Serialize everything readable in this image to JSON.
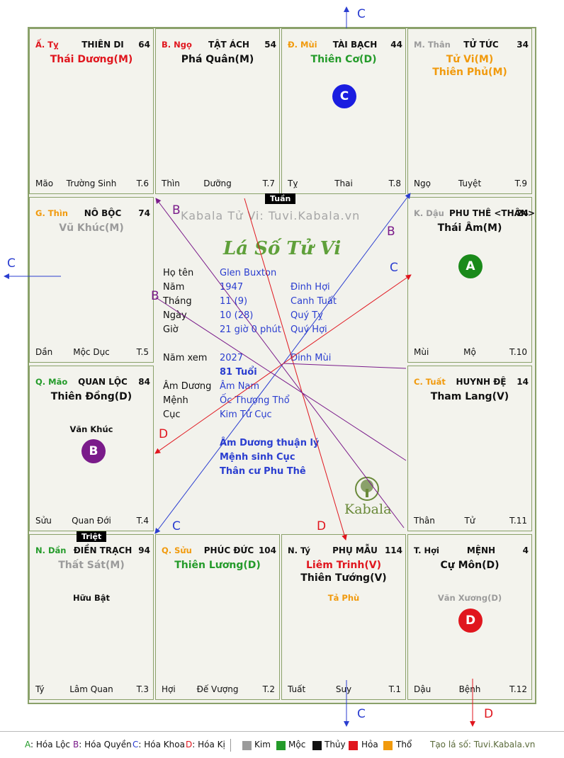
{
  "cells": [
    {
      "id": "ty",
      "can": "Ấ. Tỵ",
      "can_color": "#e0161e",
      "palace": "THIÊN DI",
      "num": "64",
      "stars": [
        {
          "t": "Thái Dương(M)",
          "c": "red"
        }
      ],
      "minor": [],
      "bl": "Mão",
      "bc": "Trường Sinh",
      "br": "T.6"
    },
    {
      "id": "ngo",
      "can": "B. Ngọ",
      "can_color": "#e0161e",
      "palace": "TẬT ÁCH",
      "num": "54",
      "stars": [
        {
          "t": "Phá Quân(M)",
          "c": "black"
        }
      ],
      "minor": [],
      "bl": "Thìn",
      "bc": "Dưỡng",
      "br": "T.7"
    },
    {
      "id": "mui",
      "can": "Đ. Mùi",
      "can_color": "#f19a0d",
      "palace": "TÀI BẠCH",
      "num": "44",
      "stars": [
        {
          "t": "Thiên Cơ(D)",
          "c": "green"
        }
      ],
      "minor": [],
      "bl": "Tỵ",
      "bc": "Thai",
      "br": "T.8"
    },
    {
      "id": "than",
      "can": "M. Thân",
      "can_color": "#9b9b9b",
      "palace": "TỬ TỨC",
      "num": "34",
      "stars": [
        {
          "t": "Tử Vi(M)",
          "c": "orange"
        },
        {
          "t": "Thiên Phủ(M)",
          "c": "orange"
        }
      ],
      "minor": [],
      "bl": "Ngọ",
      "bc": "Tuyệt",
      "br": "T.9"
    },
    {
      "id": "thin",
      "can": "G. Thìn",
      "can_color": "#f19a0d",
      "palace": "NÔ BỘC",
      "num": "74",
      "stars": [
        {
          "t": "Vũ Khúc(M)",
          "c": "grey"
        }
      ],
      "minor": [],
      "bl": "Dần",
      "bc": "Mộc Dục",
      "br": "T.5"
    },
    {
      "id": "dau",
      "can": "K. Dậu",
      "can_color": "#9b9b9b",
      "palace": "PHU THÊ <THÂN>",
      "num": "24",
      "stars": [
        {
          "t": "Thái Âm(M)",
          "c": "black"
        }
      ],
      "minor": [],
      "bl": "Mùi",
      "bc": "Mộ",
      "br": "T.10"
    },
    {
      "id": "mao",
      "can": "Q. Mão",
      "can_color": "#249b2a",
      "palace": "QUAN LỘC",
      "num": "84",
      "stars": [
        {
          "t": "Thiên Đồng(D)",
          "c": "black"
        }
      ],
      "minor": [
        {
          "t": "Văn Khúc",
          "c": "black"
        }
      ],
      "bl": "Sửu",
      "bc": "Quan Đới",
      "br": "T.4"
    },
    {
      "id": "tuat",
      "can": "C. Tuất",
      "can_color": "#f19a0d",
      "palace": "HUYNH ĐỆ",
      "num": "14",
      "stars": [
        {
          "t": "Tham Lang(V)",
          "c": "black"
        }
      ],
      "minor": [],
      "bl": "Thân",
      "bc": "Tử",
      "br": "T.11"
    },
    {
      "id": "dan",
      "can": "N. Dần",
      "can_color": "#249b2a",
      "palace": "ĐIỀN TRẠCH",
      "num": "94",
      "stars": [
        {
          "t": "Thất Sát(M)",
          "c": "grey"
        }
      ],
      "minor": [
        {
          "t": "Hữu Bật",
          "c": "black"
        }
      ],
      "bl": "Tý",
      "bc": "Lâm Quan",
      "br": "T.3"
    },
    {
      "id": "suu",
      "can": "Q. Sửu",
      "can_color": "#f19a0d",
      "palace": "PHÚC ĐỨC",
      "num": "104",
      "stars": [
        {
          "t": "Thiên Lương(D)",
          "c": "green"
        }
      ],
      "minor": [],
      "bl": "Hợi",
      "bc": "Đế Vượng",
      "br": "T.2"
    },
    {
      "id": "tyr",
      "can": "N. Tý",
      "can_color": "#111111",
      "palace": "PHỤ MẪU",
      "num": "114",
      "stars": [
        {
          "t": "Liêm Trinh(V)",
          "c": "red"
        },
        {
          "t": "Thiên Tướng(V)",
          "c": "black"
        }
      ],
      "minor": [
        {
          "t": "Tả Phù",
          "c": "orange"
        }
      ],
      "bl": "Tuất",
      "bc": "Suy",
      "br": "T.1"
    },
    {
      "id": "hoi",
      "can": "T. Hợi",
      "can_color": "#111111",
      "palace": "MỆNH",
      "num": "4",
      "stars": [
        {
          "t": "Cự Môn(D)",
          "c": "black"
        }
      ],
      "minor": [
        {
          "t": "Văn Xương(D)",
          "c": "grey"
        }
      ],
      "bl": "Dậu",
      "bc": "Bệnh",
      "br": "T.12"
    }
  ],
  "badges": {
    "tuan": "Tuần",
    "triet": "Triệt"
  },
  "circles": {
    "a": "A",
    "b": "B",
    "c": "C",
    "d": "D"
  },
  "watermark": "Kabala Tử Vi: Tuvi.Kabala.vn",
  "title": "Lá Số Tử Vi",
  "brand": "Kabala",
  "info": {
    "ho_ten_label": "Họ tên",
    "ho_ten": "Glen Buxton",
    "nam_label": "Năm",
    "nam": "1947",
    "nam_can": "Đinh Hợi",
    "thang_label": "Tháng",
    "thang": "11 (9)",
    "thang_can": "Canh Tuất",
    "ngay_label": "Ngày",
    "ngay": "10  (28)",
    "ngay_can": "Quý Tỵ",
    "gio_label": "Giờ",
    "gio": "21 giờ 0 phút",
    "gio_can": "Quý Hợi",
    "namxem_label": "Năm xem",
    "namxem": "2027",
    "namxem_can": "Đinh Mùi",
    "tuoi": "81 Tuổi",
    "amduong_label": "Âm Dương",
    "amduong": "Âm Nam",
    "menh_label": "Mệnh",
    "menh": "Ốc Thượng Thổ",
    "cuc_label": "Cục",
    "cuc": "Kim Tứ Cục",
    "note1": "Âm Dương thuận lý",
    "note2": "Mệnh sinh Cục",
    "note3": "Thân cư Phu Thê"
  },
  "arrow_letters": {
    "c": "C",
    "b": "B",
    "d": "D"
  },
  "legend": {
    "a": "A: Hóa Lộc",
    "b": "B: Hóa Quyền",
    "c": "C: Hóa Khoa",
    "d": "D: Hóa Kị",
    "kim": "Kim",
    "moc": "Mộc",
    "thuy": "Thủy",
    "hoa": "Hỏa",
    "tho": "Thổ",
    "site": "Tạo lá số: Tuvi.Kabala.vn",
    "colors": {
      "kim": "#9b9b9b",
      "moc": "#249b2a",
      "thuy": "#111111",
      "hoa": "#e0161e",
      "tho": "#f19a0d"
    }
  }
}
